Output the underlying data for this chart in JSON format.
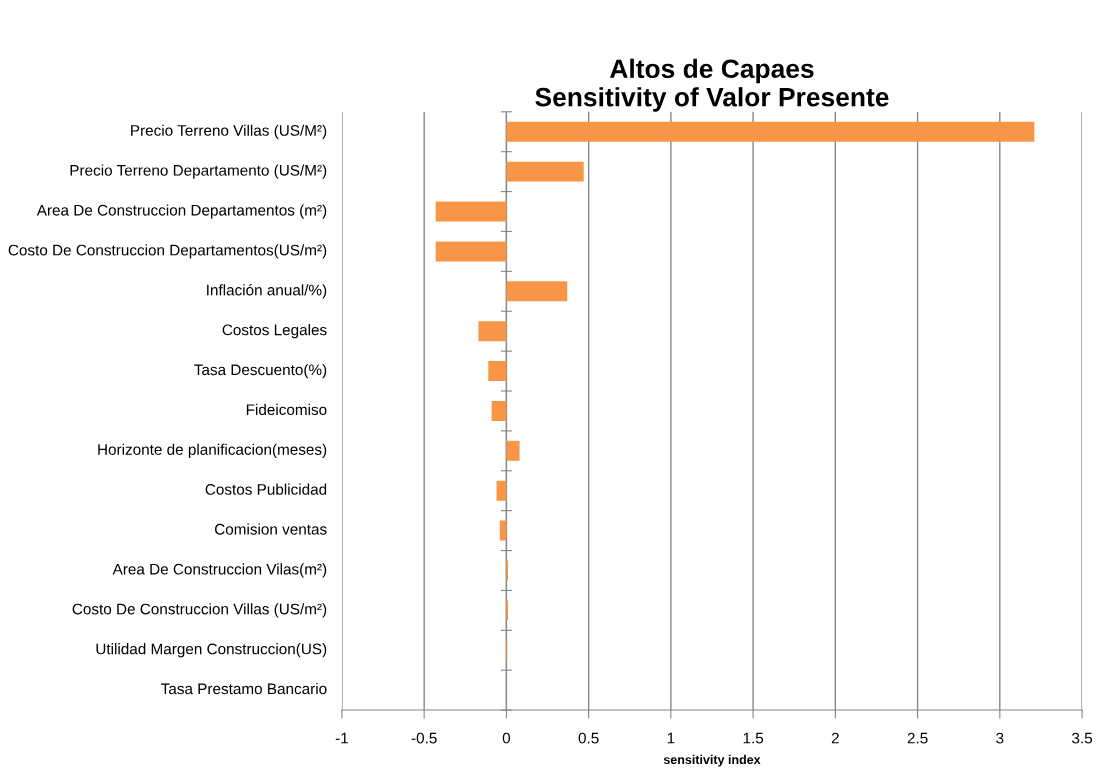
{
  "chart_data": {
    "type": "bar",
    "orientation": "horizontal",
    "title": "Altos de Capaes\nSensitivity of Valor Presente",
    "xlabel": "sensitivity index",
    "categories": [
      "Precio Terreno Villas (US/M²)",
      "Precio Terreno Departamento (US/M²)",
      "Area De Construccion Departamentos (m²)",
      "Costo De Construccion Departamentos(US/m²)",
      "Inflación anual/%)",
      "Costos Legales",
      "Tasa Descuento(%)",
      "Fideicomiso",
      "Horizonte de planificacion(meses)",
      "Costos Publicidad",
      "Comision ventas",
      "Area De Construccion Vilas(m²)",
      "Costo De Construccion Villas (US/m²)",
      "Utilidad Margen Construccion(US)",
      "Tasa Prestamo Bancario"
    ],
    "values": [
      3.21,
      0.47,
      -0.43,
      -0.43,
      0.37,
      -0.17,
      -0.11,
      -0.09,
      0.08,
      -0.06,
      -0.04,
      0.01,
      0.01,
      0.005,
      0
    ],
    "color": "#f79646",
    "xlim": [
      -1,
      3.5
    ],
    "xticks": [
      -1,
      -0.5,
      0,
      0.5,
      1,
      1.5,
      2,
      2.5,
      3,
      3.5
    ],
    "grid": "x",
    "legend": false
  }
}
